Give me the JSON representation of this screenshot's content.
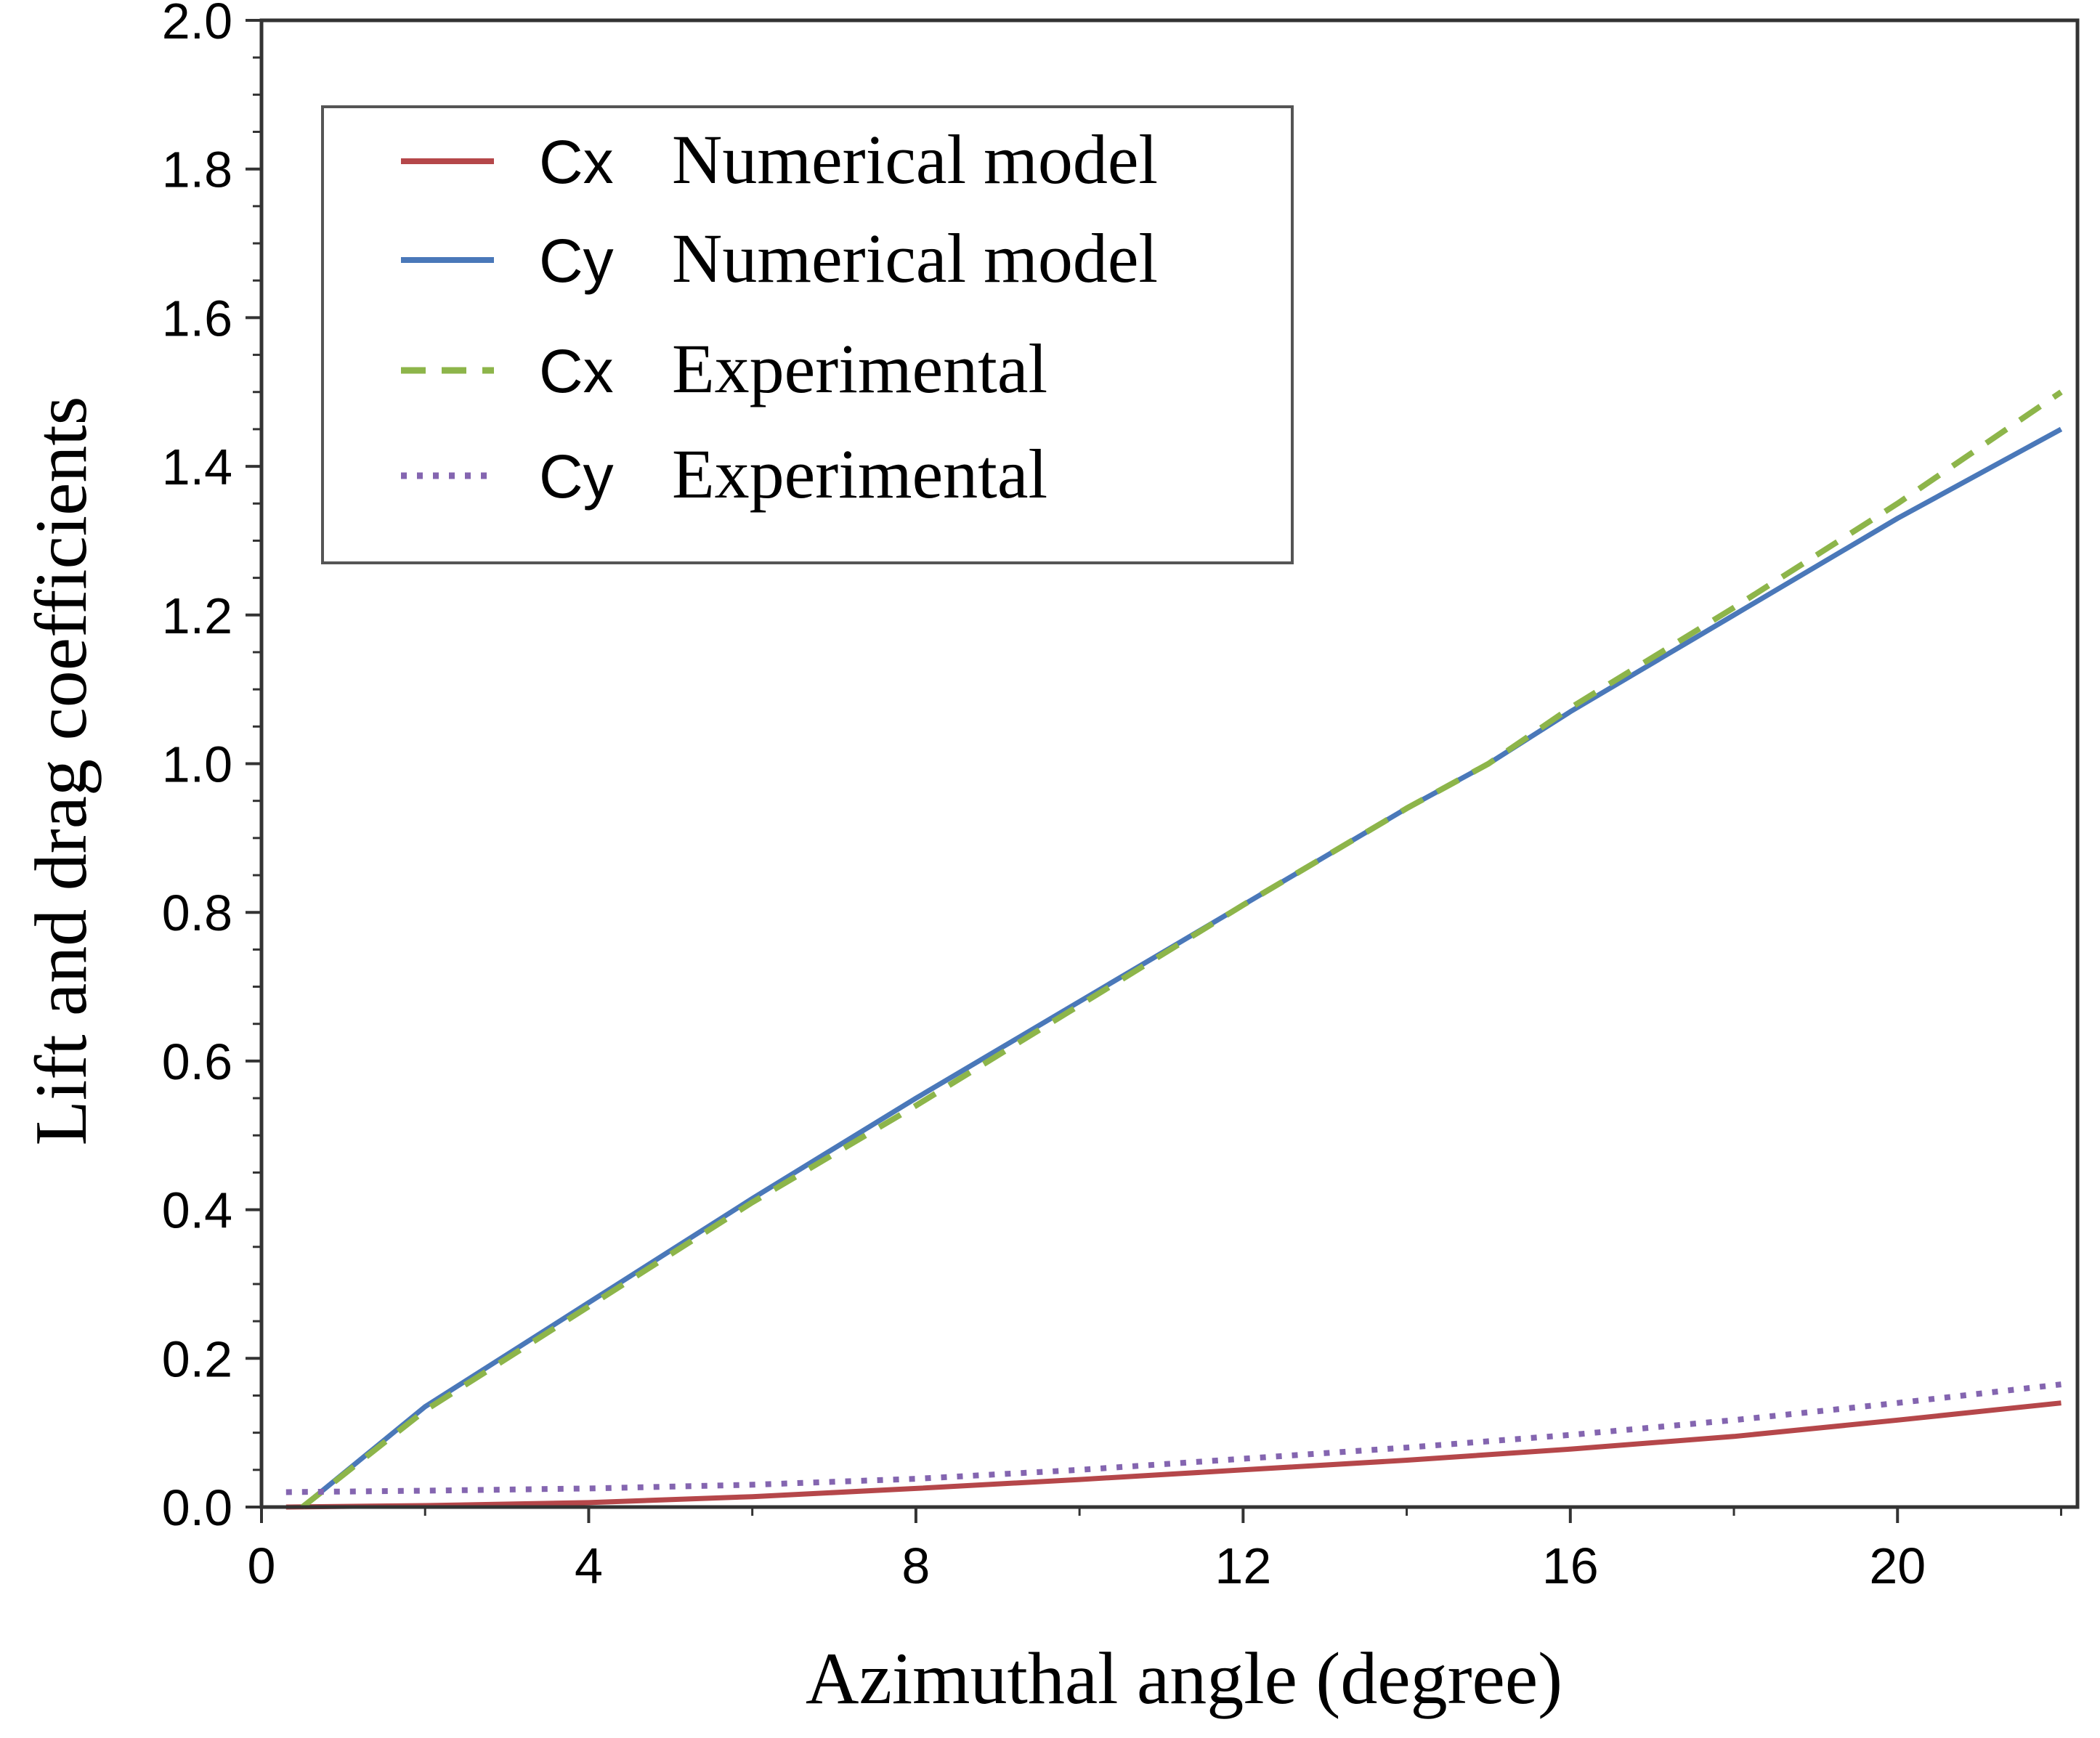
{
  "chart_data": {
    "type": "line",
    "title": "",
    "xlabel": "Azimuthal angle (degree)",
    "ylabel": "Lift and drag coefficients",
    "xlim": [
      0,
      22.2
    ],
    "ylim": [
      0,
      2.0
    ],
    "xticks": [
      0,
      4,
      8,
      12,
      16,
      20
    ],
    "xtick_labels": [
      "0",
      "4",
      "8",
      "12",
      "16",
      "20"
    ],
    "yticks": [
      0,
      0.2,
      0.4,
      0.6,
      0.8,
      1.0,
      1.2,
      1.4,
      1.6,
      1.8,
      2.0
    ],
    "ytick_labels": [
      "0.0",
      "0.2",
      "0.4",
      "0.6",
      "0.8",
      "1.0",
      "1.2",
      "1.4",
      "1.6",
      "1.8",
      "2.0"
    ],
    "grid": false,
    "legend_position": "top-left",
    "series": [
      {
        "name": "Cx Numerical model",
        "symbol": "Cx",
        "label": "Numerical model",
        "color": "#b5474a",
        "style": "solid",
        "x": [
          0.3,
          2,
          4,
          6,
          8,
          10,
          12,
          14,
          16,
          18,
          20,
          22
        ],
        "y": [
          0.0,
          0.002,
          0.006,
          0.014,
          0.025,
          0.037,
          0.05,
          0.063,
          0.078,
          0.095,
          0.117,
          0.14
        ]
      },
      {
        "name": "Cy Numerical model",
        "symbol": "Cy",
        "label": "Numerical model",
        "color": "#4a78b9",
        "style": "solid",
        "x": [
          0.5,
          2,
          4,
          6,
          8,
          10,
          12,
          14,
          15,
          16,
          18,
          20,
          22
        ],
        "y": [
          0.0,
          0.135,
          0.275,
          0.415,
          0.55,
          0.68,
          0.81,
          0.94,
          1.0,
          1.07,
          1.2,
          1.33,
          1.45
        ]
      },
      {
        "name": "Cx Experimental",
        "symbol": "Cx",
        "label": "Experimental",
        "color": "#8db54a",
        "style": "dashed",
        "x": [
          0.5,
          2,
          4,
          6,
          8,
          10,
          12,
          14,
          15,
          16,
          18,
          20,
          22
        ],
        "y": [
          0.0,
          0.13,
          0.27,
          0.41,
          0.54,
          0.675,
          0.81,
          0.94,
          1.0,
          1.075,
          1.21,
          1.35,
          1.5
        ]
      },
      {
        "name": "Cy Experimental",
        "symbol": "Cy",
        "label": "Experimental",
        "color": "#8465b0",
        "style": "dotted",
        "x": [
          0.3,
          2,
          4,
          6,
          8,
          10,
          12,
          14,
          16,
          18,
          20,
          22
        ],
        "y": [
          0.02,
          0.022,
          0.025,
          0.03,
          0.038,
          0.05,
          0.065,
          0.08,
          0.097,
          0.117,
          0.14,
          0.165
        ]
      }
    ]
  }
}
